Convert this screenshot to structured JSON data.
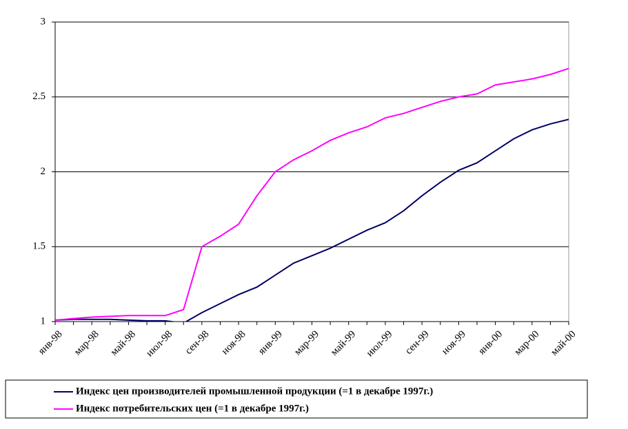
{
  "chart_data": {
    "type": "line",
    "categories": [
      "янв-98",
      null,
      "мар-98",
      null,
      "май-98",
      null,
      "июл-98",
      null,
      "сен-98",
      null,
      "ноя-98",
      null,
      "янв-99",
      null,
      "мар-99",
      null,
      "май-99",
      null,
      "июл-99",
      null,
      "сен-99",
      null,
      "ноя-99",
      null,
      "янв-00",
      null,
      "мар-00",
      null,
      "май-00"
    ],
    "series": [
      {
        "name": "Индекс цен производителей промышленной продукции (=1 в декабре 1997г.)",
        "color": "#000066",
        "values": [
          1.01,
          1.015,
          1.015,
          1.015,
          1.01,
          1.005,
          1.005,
          0.99,
          1.06,
          1.12,
          1.18,
          1.23,
          1.31,
          1.39,
          1.44,
          1.49,
          1.55,
          1.61,
          1.66,
          1.74,
          1.84,
          1.93,
          2.01,
          2.06,
          2.14,
          2.22,
          2.28,
          2.32,
          2.35
        ]
      },
      {
        "name": "Индекс потребительских цен (=1 в декабре 1997г.)",
        "color": "#ff00ff",
        "values": [
          1.01,
          1.02,
          1.03,
          1.035,
          1.04,
          1.04,
          1.04,
          1.08,
          1.5,
          1.57,
          1.65,
          1.84,
          2.0,
          2.08,
          2.14,
          2.21,
          2.26,
          2.3,
          2.36,
          2.39,
          2.43,
          2.47,
          2.5,
          2.52,
          2.58,
          2.6,
          2.62,
          2.65,
          2.69
        ]
      }
    ],
    "ylim": [
      1,
      3
    ],
    "yticks": [
      1,
      1.5,
      2,
      2.5,
      3
    ],
    "grid": true,
    "legend": "bottom"
  }
}
